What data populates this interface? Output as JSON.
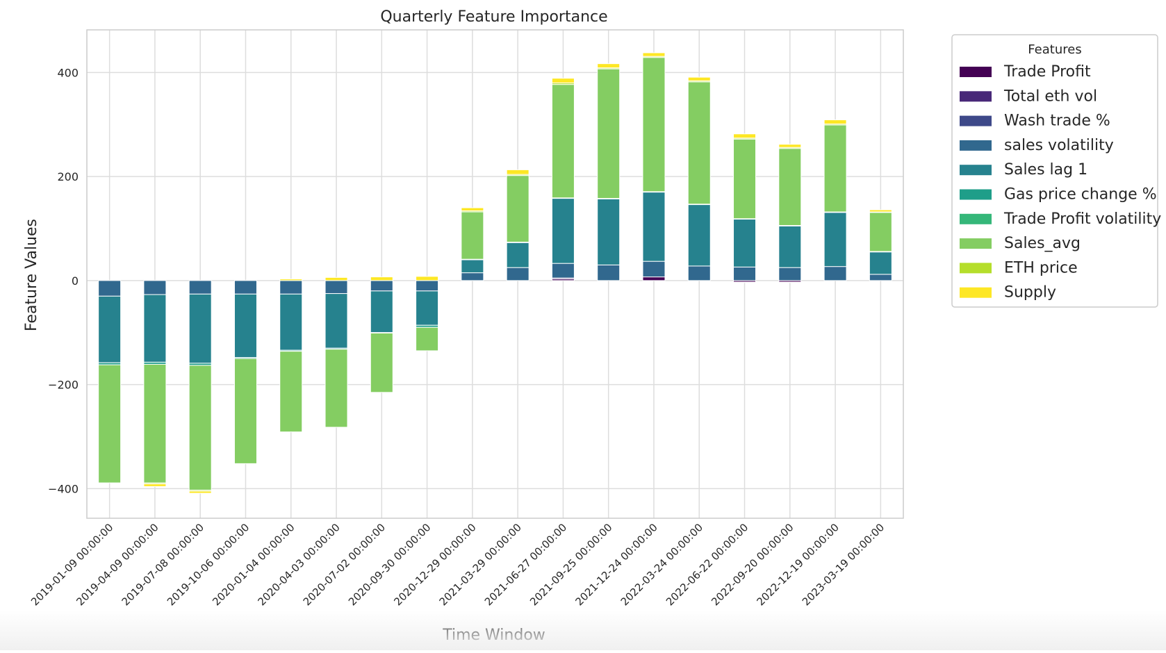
{
  "chart_data": {
    "type": "bar",
    "stacked": true,
    "title": "Quarterly Feature Importance",
    "xlabel": "Time Window",
    "ylabel": "Feature Values",
    "ylim": [
      -457,
      482
    ],
    "yticks": [
      -400,
      -200,
      0,
      200,
      400
    ],
    "yticklabels": [
      "−400",
      "−200",
      "0",
      "200",
      "400"
    ],
    "grid": true,
    "legend": {
      "title": "Features",
      "placement": "outside-upper-right"
    },
    "categories": [
      "2019-01-09 00:00:00",
      "2019-04-09 00:00:00",
      "2019-07-08 00:00:00",
      "2019-10-06 00:00:00",
      "2020-01-04 00:00:00",
      "2020-04-03 00:00:00",
      "2020-07-02 00:00:00",
      "2020-09-30 00:00:00",
      "2020-12-29 00:00:00",
      "2021-03-29 00:00:00",
      "2021-06-27 00:00:00",
      "2021-09-25 00:00:00",
      "2021-12-24 00:00:00",
      "2022-03-24 00:00:00",
      "2022-06-22 00:00:00",
      "2022-09-20 00:00:00",
      "2022-12-19 00:00:00",
      "2023-03-19 00:00:00"
    ],
    "series": [
      {
        "name": "Trade Profit",
        "color": "#440154",
        "values": [
          0,
          0,
          0,
          0,
          0,
          0,
          0,
          0,
          0,
          0,
          3,
          0,
          7,
          0,
          -3,
          -3,
          0,
          0
        ]
      },
      {
        "name": "Total eth vol",
        "color": "#482878",
        "values": [
          0,
          0,
          0,
          0,
          0,
          0,
          0,
          0,
          0,
          0,
          2,
          0,
          0,
          0,
          -1,
          -1,
          0,
          0
        ]
      },
      {
        "name": "Wash trade %",
        "color": "#3e4989",
        "values": [
          0,
          0,
          0,
          0,
          0,
          0,
          0,
          0,
          0,
          0,
          0,
          0,
          0,
          0,
          0,
          0,
          0,
          0
        ]
      },
      {
        "name": "sales volatility",
        "color": "#31688e",
        "values": [
          -30,
          -27,
          -26,
          -26,
          -26,
          -25,
          -20,
          -20,
          15,
          25,
          28,
          30,
          30,
          28,
          26,
          25,
          27,
          12
        ]
      },
      {
        "name": "Sales lag 1",
        "color": "#26828e",
        "values": [
          -128,
          -130,
          -133,
          -122,
          -108,
          -105,
          -80,
          -66,
          25,
          48,
          125,
          127,
          133,
          118,
          92,
          80,
          104,
          43
        ]
      },
      {
        "name": "Gas price change %",
        "color": "#1f9e89",
        "values": [
          -4,
          -4,
          -4,
          -2,
          -2,
          -2,
          -1,
          -4,
          1,
          1,
          1,
          1,
          1,
          1,
          1,
          1,
          1,
          1
        ]
      },
      {
        "name": "Trade Profit volatility",
        "color": "#35b779",
        "values": [
          0,
          0,
          0,
          0,
          0,
          0,
          0,
          0,
          0,
          0,
          0,
          0,
          0,
          0,
          0,
          0,
          0,
          0
        ]
      },
      {
        "name": "Sales_avg",
        "color": "#84cd62",
        "values": [
          -227,
          -228,
          -240,
          -202,
          -155,
          -150,
          -114,
          -45,
          91,
          128,
          218,
          249,
          258,
          235,
          153,
          148,
          167,
          75
        ]
      },
      {
        "name": "ETH price",
        "color": "#b5de2b",
        "values": [
          0,
          -2,
          -2,
          0,
          0,
          0,
          0,
          0,
          2,
          2,
          3,
          2,
          2,
          2,
          2,
          2,
          2,
          1
        ]
      },
      {
        "name": "Supply",
        "color": "#fde725",
        "values": [
          0,
          -5,
          -4,
          0,
          3,
          6,
          7,
          8,
          6,
          9,
          9,
          8,
          7,
          7,
          8,
          6,
          8,
          4
        ]
      }
    ]
  }
}
